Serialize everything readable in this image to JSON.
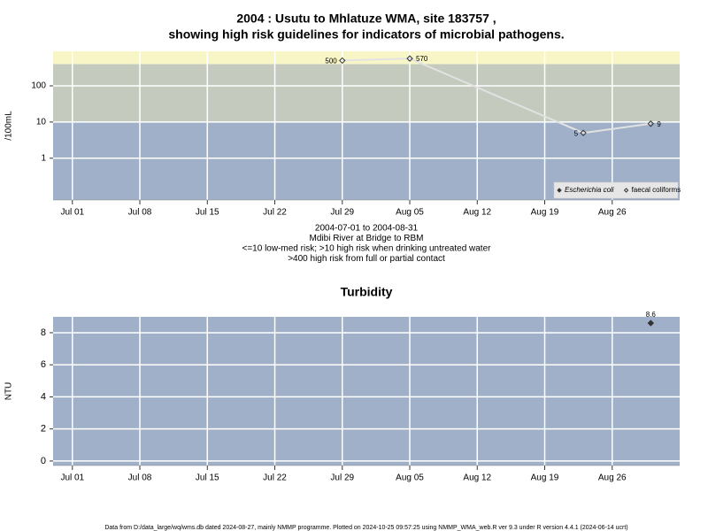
{
  "chart_data": [
    {
      "type": "line",
      "title": [
        "2004 : Usutu to Mhlatuze WMA, site 183757 ,",
        "showing high risk guidelines for indicators of microbial pathogens."
      ],
      "y_label": "/100mL",
      "notes": [
        "2004-07-01 to 2004-08-31",
        "Mdibi River at Bridge to RBM",
        "<=10 low-med risk; >10 high risk when drinking untreated water",
        ">400 high risk from full or partial contact"
      ],
      "log_y": true,
      "xlim": [
        "2004-06-29",
        "2004-09-02"
      ],
      "xticks": [
        {
          "value": "2004-07-01",
          "label": "Jul 01"
        },
        {
          "value": "2004-07-08",
          "label": "Jul 08"
        },
        {
          "value": "2004-07-15",
          "label": "Jul 15"
        },
        {
          "value": "2004-07-22",
          "label": "Jul 22"
        },
        {
          "value": "2004-07-29",
          "label": "Jul 29"
        },
        {
          "value": "2004-08-05",
          "label": "Aug 05"
        },
        {
          "value": "2004-08-12",
          "label": "Aug 12"
        },
        {
          "value": "2004-08-19",
          "label": "Aug 19"
        },
        {
          "value": "2004-08-26",
          "label": "Aug 26"
        }
      ],
      "ylim": [
        0.07,
        900
      ],
      "yticks": [
        1,
        10,
        100
      ],
      "grid": true,
      "bands": [
        {
          "to": 10,
          "color": "#a0b0c8"
        },
        {
          "from": 10,
          "to": 400,
          "color": "#c4cbbe"
        },
        {
          "from": 400,
          "color": "#f8f5c6"
        }
      ],
      "x": [
        "2004-07-29",
        "2004-08-05",
        "2004-08-23",
        "2004-08-30"
      ],
      "series": [
        {
          "name": "Escherichia coli",
          "color": "#333333",
          "marker": "filled-diamond",
          "values": [
            null,
            null,
            null,
            null
          ]
        },
        {
          "name": "faecal coliforms",
          "color": "#333333",
          "line_color": "#e2e2e2",
          "marker": "open-diamond",
          "values": [
            500,
            570,
            5,
            9
          ]
        }
      ],
      "legend": "bottom-right"
    },
    {
      "type": "scatter",
      "title": [
        "Turbidity"
      ],
      "y_label": "NTU",
      "log_y": false,
      "xlim": [
        "2004-06-29",
        "2004-09-02"
      ],
      "xticks": [
        {
          "value": "2004-07-01",
          "label": "Jul 01"
        },
        {
          "value": "2004-07-08",
          "label": "Jul 08"
        },
        {
          "value": "2004-07-15",
          "label": "Jul 15"
        },
        {
          "value": "2004-07-22",
          "label": "Jul 22"
        },
        {
          "value": "2004-07-29",
          "label": "Jul 29"
        },
        {
          "value": "2004-08-05",
          "label": "Aug 05"
        },
        {
          "value": "2004-08-12",
          "label": "Aug 12"
        },
        {
          "value": "2004-08-19",
          "label": "Aug 19"
        },
        {
          "value": "2004-08-26",
          "label": "Aug 26"
        }
      ],
      "ylim": [
        -0.28,
        8.99
      ],
      "yticks": [
        0,
        2,
        4,
        6,
        8
      ],
      "grid": true,
      "background": "#a0b0c8",
      "x": [
        "2004-08-30"
      ],
      "values": [
        8.6
      ],
      "color": "#333333",
      "marker": "filled-diamond"
    }
  ],
  "footer": "Data from D:/data_large/wq/wms.db dated 2024-08-27, mainly NMMP programme. Plotted on 2024-10-25 09:57:25 using NMMP_WMA_web.R ver 9.3 under R version 4.4.1 (2024-06-14 ucrt)"
}
